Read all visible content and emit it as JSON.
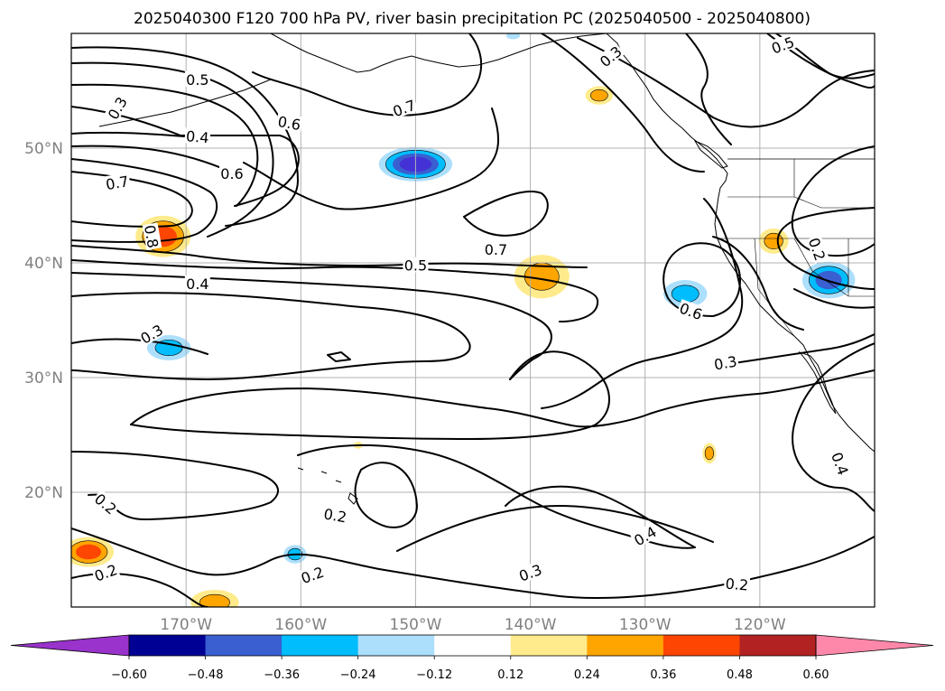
{
  "title": "2025040300 F120 700 hPa PV, river basin precipitation PC (2025040500 - 2025040800)",
  "map": {
    "lon_range": [
      -180,
      -110
    ],
    "lat_range": [
      10,
      60
    ],
    "lon_ticks": [
      {
        "lon": -170,
        "label": "170°W"
      },
      {
        "lon": -160,
        "label": "160°W"
      },
      {
        "lon": -150,
        "label": "150°W"
      },
      {
        "lon": -140,
        "label": "140°W"
      },
      {
        "lon": -130,
        "label": "130°W"
      },
      {
        "lon": -120,
        "label": "120°W"
      }
    ],
    "lat_ticks": [
      {
        "lat": 20,
        "label": "20°N"
      },
      {
        "lat": 30,
        "label": "30°N"
      },
      {
        "lat": 40,
        "label": "40°N"
      },
      {
        "lat": 50,
        "label": "50°N"
      }
    ],
    "grid": true
  },
  "contour_labels": [
    {
      "lon": -169,
      "lat": 56.0,
      "text": "0.5",
      "rot": 0
    },
    {
      "lon": -176,
      "lat": 53.5,
      "text": "0.3",
      "rot": 60
    },
    {
      "lon": -151,
      "lat": 53.5,
      "text": "0.7",
      "rot": 20
    },
    {
      "lon": -161,
      "lat": 52.2,
      "text": "0.6",
      "rot": -10
    },
    {
      "lon": -169,
      "lat": 51.0,
      "text": "0.4",
      "rot": -5
    },
    {
      "lon": -166,
      "lat": 47.8,
      "text": "0.6",
      "rot": 0
    },
    {
      "lon": -176,
      "lat": 47.0,
      "text": "0.7",
      "rot": 10
    },
    {
      "lon": -173,
      "lat": 42.3,
      "text": "0.8",
      "rot": -80
    },
    {
      "lon": -133,
      "lat": 58.0,
      "text": "0.3",
      "rot": 40
    },
    {
      "lon": -118,
      "lat": 59.0,
      "text": "0.5",
      "rot": 20
    },
    {
      "lon": -143,
      "lat": 41.2,
      "text": "0.7",
      "rot": 0
    },
    {
      "lon": -150,
      "lat": 39.8,
      "text": "0.5",
      "rot": 0
    },
    {
      "lon": -169,
      "lat": 38.2,
      "text": "0.4",
      "rot": 0
    },
    {
      "lon": -126,
      "lat": 35.8,
      "text": "0.6",
      "rot": -20
    },
    {
      "lon": -115,
      "lat": 41.2,
      "text": "0.2",
      "rot": -70
    },
    {
      "lon": -173,
      "lat": 33.8,
      "text": "0.3",
      "rot": 30
    },
    {
      "lon": -123,
      "lat": 31.3,
      "text": "0.3",
      "rot": 10
    },
    {
      "lon": -177,
      "lat": 19.0,
      "text": "0.2",
      "rot": -40
    },
    {
      "lon": -157,
      "lat": 18.0,
      "text": "0.2",
      "rot": -10
    },
    {
      "lon": -140,
      "lat": 13.0,
      "text": "0.3",
      "rot": 20
    },
    {
      "lon": -130,
      "lat": 16.2,
      "text": "0.4",
      "rot": 30
    },
    {
      "lon": -159,
      "lat": 12.8,
      "text": "0.2",
      "rot": 20
    },
    {
      "lon": -177,
      "lat": 13.0,
      "text": "0.2",
      "rot": 20
    },
    {
      "lon": -122,
      "lat": 12.0,
      "text": "0.2",
      "rot": -5
    },
    {
      "lon": -113,
      "lat": 22.5,
      "text": "0.4",
      "rot": -70
    }
  ],
  "precip_blobs": [
    {
      "lon": -150,
      "lat": 48.6,
      "rx": 3.2,
      "ry": 1.5,
      "levels": [
        "#acdffc",
        "#00bdfe",
        "#3a5fd0",
        "#4532d6"
      ]
    },
    {
      "lon": -172,
      "lat": 42.3,
      "rx": 2.4,
      "ry": 1.8,
      "levels": [
        "#ffeb8c",
        "#ffa500",
        "#fe4502"
      ]
    },
    {
      "lon": -139,
      "lat": 38.8,
      "rx": 2.4,
      "ry": 1.9,
      "levels": [
        "#ffeb8c",
        "#ffa500"
      ]
    },
    {
      "lon": -126.5,
      "lat": 37.3,
      "rx": 1.9,
      "ry": 1.2,
      "levels": [
        "#acdffc",
        "#00bdfe"
      ]
    },
    {
      "lon": -114,
      "lat": 38.5,
      "rx": 2.3,
      "ry": 1.6,
      "levels": [
        "#acdffc",
        "#00bdfe",
        "#3a5fd0"
      ]
    },
    {
      "lon": -118.8,
      "lat": 41.9,
      "rx": 1.3,
      "ry": 1.1,
      "levels": [
        "#ffeb8c",
        "#ffa500"
      ]
    },
    {
      "lon": -134,
      "lat": 54.6,
      "rx": 1.2,
      "ry": 0.8,
      "levels": [
        "#ffeb8c",
        "#ffa500"
      ]
    },
    {
      "lon": -171.5,
      "lat": 32.6,
      "rx": 1.9,
      "ry": 1.1,
      "levels": [
        "#acdffc",
        "#00bdfe"
      ]
    },
    {
      "lon": -178.5,
      "lat": 14.8,
      "rx": 2.2,
      "ry": 1.3,
      "levels": [
        "#ffeb8c",
        "#ffa500",
        "#fe4502"
      ]
    },
    {
      "lon": -167.5,
      "lat": 10.4,
      "rx": 2.1,
      "ry": 1.1,
      "levels": [
        "#ffeb8c",
        "#ffa500"
      ]
    },
    {
      "lon": -160.5,
      "lat": 14.6,
      "rx": 1.0,
      "ry": 0.8,
      "levels": [
        "#acdffc",
        "#00bdfe"
      ]
    },
    {
      "lon": -124.4,
      "lat": 23.4,
      "rx": 0.6,
      "ry": 0.9,
      "levels": [
        "#ffeb8c",
        "#ffa500"
      ]
    },
    {
      "lon": -141.5,
      "lat": 59.8,
      "rx": 0.6,
      "ry": 0.3,
      "levels": [
        "#acdffc"
      ]
    },
    {
      "lon": -155,
      "lat": 24.1,
      "rx": 0.4,
      "ry": 0.3,
      "levels": [
        "#ffeb8c"
      ]
    }
  ],
  "colorbar": {
    "colors": [
      "#9933cc",
      "#000095",
      "#3a5fd0",
      "#00bdfe",
      "#acdffc",
      "#ffffff",
      "#ffeb8c",
      "#ffa500",
      "#fe4502",
      "#b32222",
      "#fe88a9"
    ],
    "under_color": "#9933cc",
    "over_color": "#fe88a9",
    "tick_labels": [
      "−0.60",
      "−0.48",
      "−0.36",
      "−0.24",
      "−0.12",
      "0.12",
      "0.24",
      "0.36",
      "0.48",
      "0.60"
    ]
  }
}
